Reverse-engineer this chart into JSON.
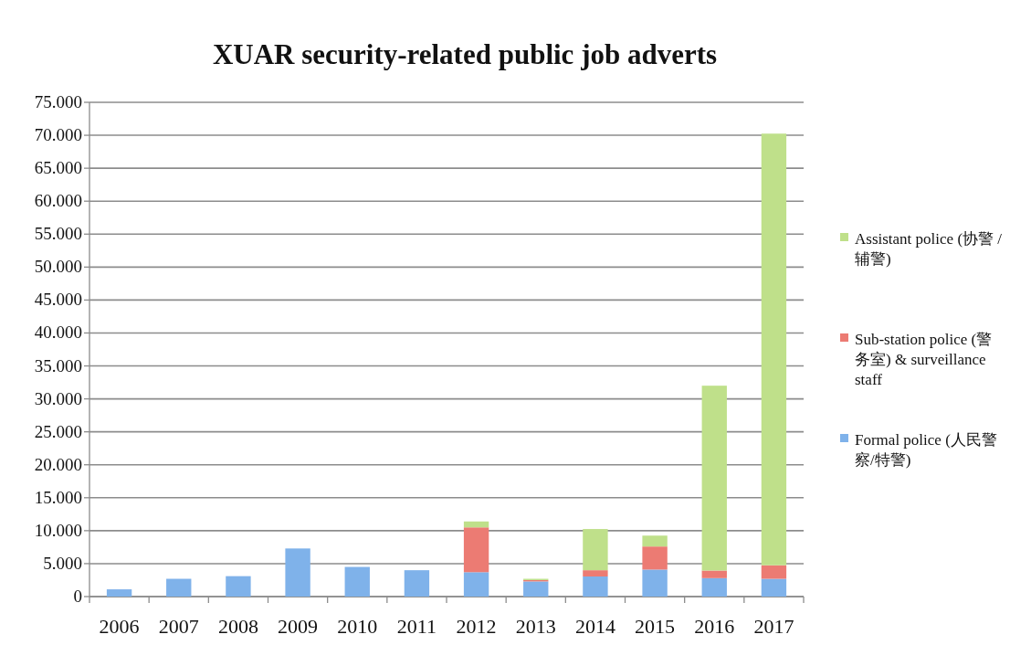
{
  "chart_data": {
    "type": "bar",
    "title": "XUAR security-related public job adverts",
    "stacked": true,
    "grid": "y",
    "legend": "right",
    "categories": [
      "2006",
      "2007",
      "2008",
      "2009",
      "2010",
      "2011",
      "2012",
      "2013",
      "2014",
      "2015",
      "2016",
      "2017"
    ],
    "ylim": [
      0,
      75000
    ],
    "yticks": [
      0,
      {
        "value": 5000,
        "label": "5.000"
      },
      {
        "value": 10000,
        "label": "10.000"
      },
      {
        "value": 15000,
        "label": "15.000"
      },
      {
        "value": 20000,
        "label": "20.000"
      },
      {
        "value": 25000,
        "label": "25.000"
      },
      {
        "value": 30000,
        "label": "30.000"
      },
      {
        "value": 35000,
        "label": "35.000"
      },
      {
        "value": 40000,
        "label": "40.000"
      },
      {
        "value": 45000,
        "label": "45.000"
      },
      {
        "value": 50000,
        "label": "50.000"
      },
      {
        "value": 55000,
        "label": "55.000"
      },
      {
        "value": 60000,
        "label": "60.000"
      },
      {
        "value": 65000,
        "label": "65.000"
      },
      {
        "value": 70000,
        "label": "70.000"
      },
      {
        "value": 75000,
        "label": "75.000"
      }
    ],
    "series": [
      {
        "name": "Formal police (人民警察/特警)",
        "color": "#7fb2ea",
        "values": [
          1100,
          2700,
          3100,
          7300,
          4500,
          4000,
          3700,
          2300,
          3050,
          4100,
          2800,
          2700
        ]
      },
      {
        "name": "Sub-station police (警务室) & surveillance staff",
        "color": "#ec7b73",
        "values": [
          0,
          0,
          0,
          0,
          0,
          0,
          6800,
          200,
          950,
          3500,
          1150,
          2050
        ]
      },
      {
        "name": "Assistant police (协警 / 辅警)",
        "color": "#bfe08a",
        "values": [
          0,
          0,
          0,
          0,
          0,
          0,
          900,
          200,
          6250,
          1650,
          28050,
          65500
        ]
      }
    ]
  }
}
